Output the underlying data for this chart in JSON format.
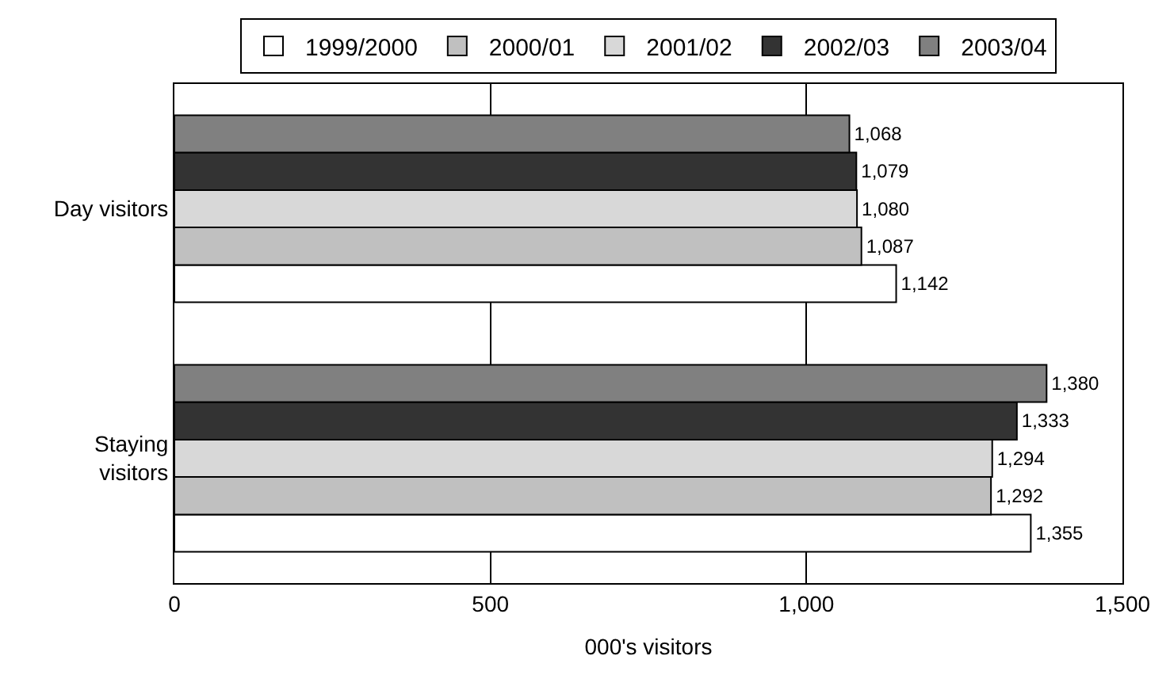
{
  "chart_data": {
    "type": "bar",
    "orientation": "horizontal",
    "xlabel": "000's visitors",
    "categories": [
      "Day visitors",
      "Staying\nvisitors"
    ],
    "series": [
      {
        "name": "1999/2000",
        "color": "#ffffff",
        "values": [
          1142,
          1355
        ],
        "value_labels": [
          "1,142",
          "1,355"
        ]
      },
      {
        "name": "2000/01",
        "color": "#c0c0c0",
        "values": [
          1087,
          1292
        ],
        "value_labels": [
          "1,087",
          "1,292"
        ]
      },
      {
        "name": "2001/02",
        "color": "#d8d8d8",
        "values": [
          1080,
          1294
        ],
        "value_labels": [
          "1,080",
          "1,294"
        ]
      },
      {
        "name": "2002/03",
        "color": "#333333",
        "values": [
          1079,
          1333
        ],
        "value_labels": [
          "1,079",
          "1,333"
        ]
      },
      {
        "name": "2003/04",
        "color": "#808080",
        "values": [
          1068,
          1380
        ],
        "value_labels": [
          "1,068",
          "1,380"
        ]
      }
    ],
    "xlim": [
      0,
      1500
    ],
    "xticks": [
      0,
      500,
      {
        "value": 1000,
        "label": "1,000"
      },
      {
        "value": 1500,
        "label": "1,500"
      }
    ],
    "grid": "x",
    "legend": "top"
  }
}
